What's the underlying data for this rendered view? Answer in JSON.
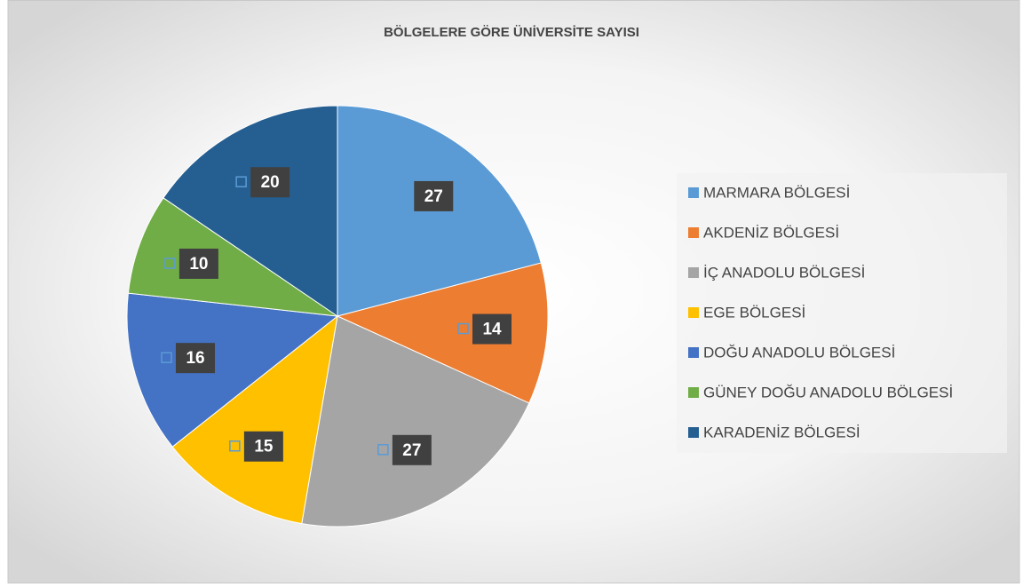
{
  "chart_data": {
    "type": "pie",
    "title": "BÖLGELERE GÖRE ÜNİVERSİTE SAYISI",
    "categories": [
      "MARMARA BÖLGESİ",
      "AKDENİZ BÖLGESİ",
      "İÇ ANADOLU BÖLGESİ",
      "EGE BÖLGESİ",
      "DOĞU ANADOLU BÖLGESİ",
      "GÜNEY DOĞU ANADOLU BÖLGESİ",
      "KARADENİZ BÖLGESİ"
    ],
    "values": [
      27,
      14,
      27,
      15,
      16,
      10,
      20
    ],
    "colors": [
      "#5b9bd5",
      "#ed7d31",
      "#a5a5a5",
      "#ffc000",
      "#4472c4",
      "#70ad47",
      "#255e91"
    ],
    "legend": "right"
  }
}
